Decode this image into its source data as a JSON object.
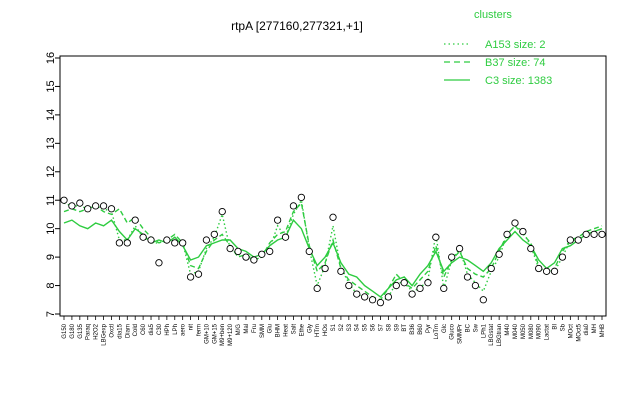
{
  "chart_data": {
    "type": "line",
    "title": "rtpA [277160,277321,+1]",
    "xlabel": "",
    "ylabel": "",
    "ylim": [
      7,
      16
    ],
    "yticks": [
      7,
      8,
      9,
      10,
      11,
      12,
      13,
      14,
      15,
      16
    ],
    "grid": false,
    "legend_position": "top-right",
    "legend": {
      "title": "clusters",
      "entries": [
        {
          "label": "A153 size: 2",
          "style": "dotted",
          "color": "#2ecc40"
        },
        {
          "label": "B37 size: 74",
          "style": "dashed",
          "color": "#2ecc40"
        },
        {
          "label": "C3 size: 1383",
          "style": "solid",
          "color": "#2ecc40"
        }
      ]
    },
    "categories": [
      "G150",
      "G180",
      "G135",
      "Paraq",
      "H2O2",
      "LBGexp",
      "Oxctl",
      "dia15",
      "Diam",
      "Cold",
      "C60",
      "dia5",
      "C30",
      "HPh",
      "LPh",
      "aero",
      "nit",
      "ferm",
      "GM+10",
      "GM+15",
      "M9+ben",
      "M9+120",
      "M/G",
      "Mal",
      "Fru",
      "SMM",
      "Glu",
      "BHM",
      "Heat",
      "Salt",
      "Ethe",
      "Gly",
      "HTm",
      "HOs",
      "S1",
      "S2",
      "S3",
      "S4",
      "S5",
      "S6",
      "S7",
      "S8",
      "S9",
      "BT",
      "B36",
      "B60",
      "Pyr",
      "LoTm",
      "Glc",
      "Gluco",
      "SMMPr",
      "BC",
      "Sw",
      "LPh1",
      "LBGstat",
      "LBGtran",
      "M40",
      "M040",
      "M050",
      "M080",
      "M090",
      "Lactat",
      "BI",
      "Sb",
      "MOct",
      "MOct5",
      "dia0",
      "MH",
      "MHB"
    ],
    "series": [
      {
        "style": "solid",
        "values": [
          10.2,
          10.3,
          10.1,
          10.0,
          10.2,
          10.1,
          10.3,
          9.9,
          9.6,
          10.0,
          9.8,
          9.5,
          9.6,
          9.5,
          9.7,
          9.4,
          8.9,
          9.0,
          9.4,
          9.5,
          9.6,
          9.6,
          9.3,
          9.2,
          9.0,
          9.1,
          9.4,
          9.6,
          9.7,
          10.3,
          10.0,
          9.3,
          8.7,
          9.0,
          9.5,
          8.8,
          8.4,
          8.3,
          8.0,
          7.8,
          7.6,
          7.9,
          8.2,
          8.3,
          8.0,
          8.4,
          8.7,
          9.2,
          8.5,
          8.8,
          9.0,
          8.9,
          8.7,
          8.5,
          8.8,
          9.3,
          9.6,
          9.9,
          9.6,
          9.4,
          8.9,
          8.6,
          8.8,
          9.3,
          9.4,
          9.6,
          9.8,
          9.9,
          10.0
        ]
      },
      {
        "style": "dashed",
        "values": [
          10.6,
          10.7,
          10.6,
          10.7,
          10.8,
          10.6,
          10.5,
          10.7,
          10.2,
          10.4,
          10.0,
          9.7,
          9.5,
          9.6,
          9.8,
          9.5,
          8.7,
          8.6,
          9.2,
          9.6,
          9.8,
          9.4,
          9.0,
          9.1,
          8.9,
          9.0,
          9.5,
          9.8,
          9.9,
          10.6,
          10.9,
          9.4,
          8.5,
          8.8,
          9.6,
          8.6,
          8.2,
          8.0,
          7.8,
          7.6,
          7.5,
          7.9,
          8.4,
          8.1,
          7.9,
          8.2,
          8.5,
          9.4,
          8.3,
          8.9,
          9.2,
          8.6,
          8.4,
          8.3,
          8.6,
          9.2,
          9.8,
          10.1,
          9.8,
          9.5,
          8.7,
          8.4,
          8.6,
          9.2,
          9.6,
          9.7,
          9.9,
          10.0,
          10.1
        ]
      },
      {
        "style": "dotted",
        "values": [
          10.9,
          10.8,
          10.8,
          10.7,
          10.8,
          10.7,
          10.6,
          9.6,
          9.6,
          10.1,
          9.7,
          9.5,
          9.5,
          9.6,
          9.6,
          9.5,
          8.4,
          8.5,
          9.3,
          9.7,
          10.5,
          9.3,
          9.1,
          9.0,
          8.9,
          9.0,
          9.3,
          10.1,
          9.7,
          10.5,
          11.0,
          9.3,
          8.0,
          8.7,
          10.1,
          8.6,
          8.1,
          7.7,
          7.6,
          7.5,
          7.4,
          7.6,
          8.1,
          8.1,
          7.8,
          7.9,
          8.2,
          9.8,
          7.9,
          8.9,
          9.3,
          8.4,
          8.1,
          7.8,
          8.5,
          9.0,
          9.8,
          10.1,
          9.9,
          9.4,
          8.6,
          8.5,
          8.5,
          9.0,
          9.6,
          9.6,
          9.8,
          9.8,
          9.8
        ]
      },
      {
        "style": "points",
        "values": [
          11.0,
          10.8,
          10.9,
          10.7,
          10.8,
          10.8,
          10.7,
          9.5,
          9.5,
          10.3,
          9.7,
          9.6,
          8.8,
          9.6,
          9.5,
          9.5,
          8.3,
          8.4,
          9.6,
          9.8,
          10.6,
          9.3,
          9.2,
          9.0,
          8.9,
          9.1,
          9.2,
          10.3,
          9.7,
          10.8,
          11.1,
          9.2,
          7.9,
          8.6,
          10.4,
          8.5,
          8.0,
          7.7,
          7.6,
          7.5,
          7.4,
          7.6,
          8.0,
          8.1,
          7.7,
          7.9,
          8.1,
          9.7,
          7.9,
          9.0,
          9.3,
          8.3,
          8.0,
          7.5,
          8.6,
          9.1,
          9.8,
          10.2,
          9.9,
          9.3,
          8.6,
          8.5,
          8.5,
          9.0,
          9.6,
          9.6,
          9.8,
          9.8,
          9.8
        ]
      }
    ]
  }
}
